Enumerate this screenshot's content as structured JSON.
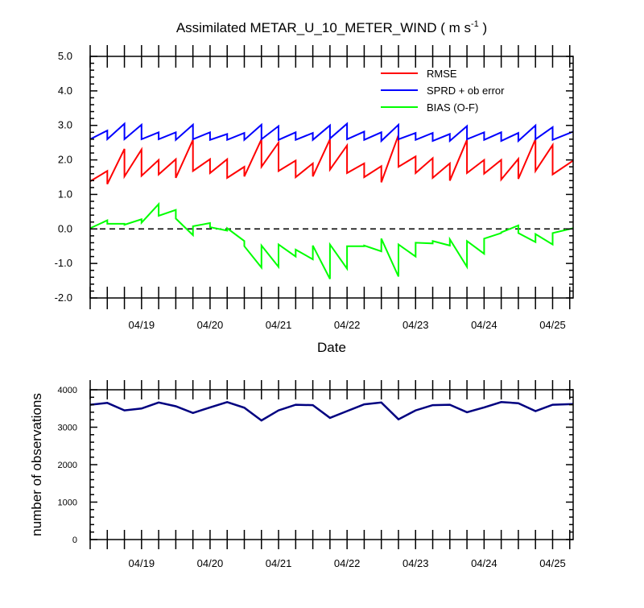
{
  "chart_data": [
    {
      "type": "line",
      "title": "Assimilated METAR_U_10_METER_WIND ( m s",
      "title_superscript": "-1",
      "title_suffix": " )",
      "xlabel": "Date",
      "ylabel": "",
      "ylim": [
        -2.0,
        5.0
      ],
      "xlim": [
        0,
        14.1
      ],
      "yticks": [
        "-2.0",
        "-1.0",
        "0.0",
        "1.0",
        "2.0",
        "3.0",
        "4.0",
        "5.0"
      ],
      "xtick_labels": [
        "04/19",
        "04/20",
        "04/21",
        "04/22",
        "04/23",
        "04/24",
        "04/25"
      ],
      "zero_line": "dashed",
      "legend_position": "top-right",
      "series": [
        {
          "name": "RMSE",
          "color": "#ff0000",
          "points": [
            [
              0,
              1.38
            ],
            [
              0.5,
              1.68
            ],
            [
              0.5,
              1.3
            ],
            [
              1,
              2.32
            ],
            [
              1,
              1.52
            ],
            [
              1.5,
              2.3
            ],
            [
              1.5,
              1.54
            ],
            [
              2,
              2.0
            ],
            [
              2,
              1.58
            ],
            [
              2.5,
              2.02
            ],
            [
              2.5,
              1.48
            ],
            [
              3,
              2.58
            ],
            [
              3,
              1.68
            ],
            [
              3.5,
              2.02
            ],
            [
              3.5,
              1.62
            ],
            [
              4,
              2.02
            ],
            [
              4,
              1.48
            ],
            [
              4.5,
              1.8
            ],
            [
              4.5,
              1.52
            ],
            [
              5,
              2.6
            ],
            [
              5,
              1.8
            ],
            [
              5.5,
              2.5
            ],
            [
              5.5,
              1.68
            ],
            [
              6,
              1.98
            ],
            [
              6,
              1.5
            ],
            [
              6.5,
              1.9
            ],
            [
              6.5,
              1.52
            ],
            [
              7,
              2.6
            ],
            [
              7,
              1.72
            ],
            [
              7.5,
              2.42
            ],
            [
              7.5,
              1.62
            ],
            [
              8,
              1.9
            ],
            [
              8,
              1.5
            ],
            [
              8.5,
              1.82
            ],
            [
              8.5,
              1.35
            ],
            [
              9,
              2.72
            ],
            [
              9,
              1.8
            ],
            [
              9.5,
              2.1
            ],
            [
              9.5,
              1.62
            ],
            [
              10,
              2.05
            ],
            [
              10,
              1.48
            ],
            [
              10.5,
              1.9
            ],
            [
              10.5,
              1.4
            ],
            [
              11,
              2.58
            ],
            [
              11,
              1.62
            ],
            [
              11.5,
              2.0
            ],
            [
              11.5,
              1.6
            ],
            [
              12,
              2.0
            ],
            [
              12,
              1.43
            ],
            [
              12.5,
              2.03
            ],
            [
              12.5,
              1.45
            ],
            [
              13,
              2.6
            ],
            [
              13,
              1.68
            ],
            [
              13.5,
              2.43
            ],
            [
              13.5,
              1.58
            ],
            [
              14.1,
              1.98
            ]
          ]
        },
        {
          "name": "SPRD + ob error",
          "color": "#0000ff",
          "points": [
            [
              0,
              2.6
            ],
            [
              0.5,
              2.85
            ],
            [
              0.5,
              2.6
            ],
            [
              1,
              3.05
            ],
            [
              1,
              2.6
            ],
            [
              1.5,
              3.02
            ],
            [
              1.5,
              2.6
            ],
            [
              2,
              2.8
            ],
            [
              2,
              2.6
            ],
            [
              2.5,
              2.8
            ],
            [
              2.5,
              2.58
            ],
            [
              3,
              3.02
            ],
            [
              3,
              2.6
            ],
            [
              3.5,
              2.8
            ],
            [
              3.5,
              2.58
            ],
            [
              4,
              2.75
            ],
            [
              4,
              2.58
            ],
            [
              4.5,
              2.78
            ],
            [
              4.5,
              2.58
            ],
            [
              5,
              3.02
            ],
            [
              5,
              2.6
            ],
            [
              5.5,
              2.98
            ],
            [
              5.5,
              2.58
            ],
            [
              6,
              2.8
            ],
            [
              6,
              2.58
            ],
            [
              6.5,
              2.78
            ],
            [
              6.5,
              2.58
            ],
            [
              7,
              3.0
            ],
            [
              7,
              2.62
            ],
            [
              7.5,
              3.05
            ],
            [
              7.5,
              2.6
            ],
            [
              8,
              2.82
            ],
            [
              8,
              2.58
            ],
            [
              8.5,
              2.8
            ],
            [
              8.5,
              2.55
            ],
            [
              9,
              3.02
            ],
            [
              9,
              2.6
            ],
            [
              9.5,
              2.78
            ],
            [
              9.5,
              2.58
            ],
            [
              10,
              2.78
            ],
            [
              10,
              2.55
            ],
            [
              10.5,
              2.75
            ],
            [
              10.5,
              2.55
            ],
            [
              11,
              2.98
            ],
            [
              11,
              2.6
            ],
            [
              11.5,
              2.8
            ],
            [
              11.5,
              2.58
            ],
            [
              12,
              2.8
            ],
            [
              12,
              2.55
            ],
            [
              12.5,
              2.78
            ],
            [
              12.5,
              2.55
            ],
            [
              13,
              3.0
            ],
            [
              13,
              2.6
            ],
            [
              13.5,
              2.95
            ],
            [
              13.5,
              2.58
            ],
            [
              14.1,
              2.82
            ]
          ]
        },
        {
          "name": "BIAS (O-F)",
          "color": "#00ff00",
          "points": [
            [
              0,
              0.02
            ],
            [
              0.5,
              0.25
            ],
            [
              0.5,
              0.15
            ],
            [
              1,
              0.15
            ],
            [
              1,
              0.12
            ],
            [
              1.5,
              0.28
            ],
            [
              1.5,
              0.18
            ],
            [
              2,
              0.72
            ],
            [
              2,
              0.38
            ],
            [
              2.5,
              0.55
            ],
            [
              2.5,
              0.3
            ],
            [
              3,
              -0.18
            ],
            [
              3,
              0.08
            ],
            [
              3.5,
              0.17
            ],
            [
              3.5,
              0.05
            ],
            [
              4,
              -0.05
            ],
            [
              4,
              0.02
            ],
            [
              4.5,
              -0.35
            ],
            [
              4.5,
              -0.5
            ],
            [
              5,
              -1.12
            ],
            [
              5,
              -0.48
            ],
            [
              5.5,
              -1.1
            ],
            [
              5.5,
              -0.45
            ],
            [
              6,
              -0.8
            ],
            [
              6,
              -0.6
            ],
            [
              6.5,
              -0.88
            ],
            [
              6.5,
              -0.48
            ],
            [
              7,
              -1.45
            ],
            [
              7,
              -0.45
            ],
            [
              7.5,
              -1.15
            ],
            [
              7.5,
              -0.5
            ],
            [
              8,
              -0.5
            ],
            [
              8,
              -0.48
            ],
            [
              8.5,
              -0.65
            ],
            [
              8.5,
              -0.28
            ],
            [
              9,
              -1.38
            ],
            [
              9,
              -0.45
            ],
            [
              9.5,
              -0.8
            ],
            [
              9.5,
              -0.4
            ],
            [
              10,
              -0.42
            ],
            [
              10,
              -0.35
            ],
            [
              10.5,
              -0.48
            ],
            [
              10.5,
              -0.3
            ],
            [
              11,
              -1.1
            ],
            [
              11,
              -0.35
            ],
            [
              11.5,
              -0.72
            ],
            [
              11.5,
              -0.28
            ],
            [
              12,
              -0.12
            ],
            [
              12,
              -0.1
            ],
            [
              12.5,
              0.1
            ],
            [
              12.5,
              -0.12
            ],
            [
              13,
              -0.38
            ],
            [
              13,
              -0.15
            ],
            [
              13.5,
              -0.45
            ],
            [
              13.5,
              -0.12
            ],
            [
              14.1,
              0.02
            ]
          ]
        }
      ]
    },
    {
      "type": "line",
      "title": "",
      "xlabel": "",
      "ylabel": "number of observations",
      "ylim": [
        0,
        4000
      ],
      "xlim": [
        0,
        14.1
      ],
      "yticks": [
        "0",
        "1000",
        "2000",
        "3000",
        "4000"
      ],
      "xtick_labels": [
        "04/19",
        "04/20",
        "04/21",
        "04/22",
        "04/23",
        "04/24",
        "04/25"
      ],
      "series": [
        {
          "name": "",
          "color": "#000080",
          "points": [
            [
              0,
              3600
            ],
            [
              0.5,
              3650
            ],
            [
              1,
              3450
            ],
            [
              1.5,
              3500
            ],
            [
              2,
              3660
            ],
            [
              2.5,
              3560
            ],
            [
              3,
              3380
            ],
            [
              3.5,
              3530
            ],
            [
              4,
              3670
            ],
            [
              4.5,
              3520
            ],
            [
              5,
              3180
            ],
            [
              5.5,
              3450
            ],
            [
              6,
              3600
            ],
            [
              6.5,
              3590
            ],
            [
              7,
              3250
            ],
            [
              7.5,
              3430
            ],
            [
              8,
              3610
            ],
            [
              8.5,
              3660
            ],
            [
              9,
              3210
            ],
            [
              9.5,
              3450
            ],
            [
              10,
              3590
            ],
            [
              10.5,
              3600
            ],
            [
              11,
              3400
            ],
            [
              11.5,
              3530
            ],
            [
              12,
              3670
            ],
            [
              12.5,
              3640
            ],
            [
              13,
              3430
            ],
            [
              13.5,
              3600
            ],
            [
              14.1,
              3620
            ]
          ]
        }
      ]
    }
  ]
}
